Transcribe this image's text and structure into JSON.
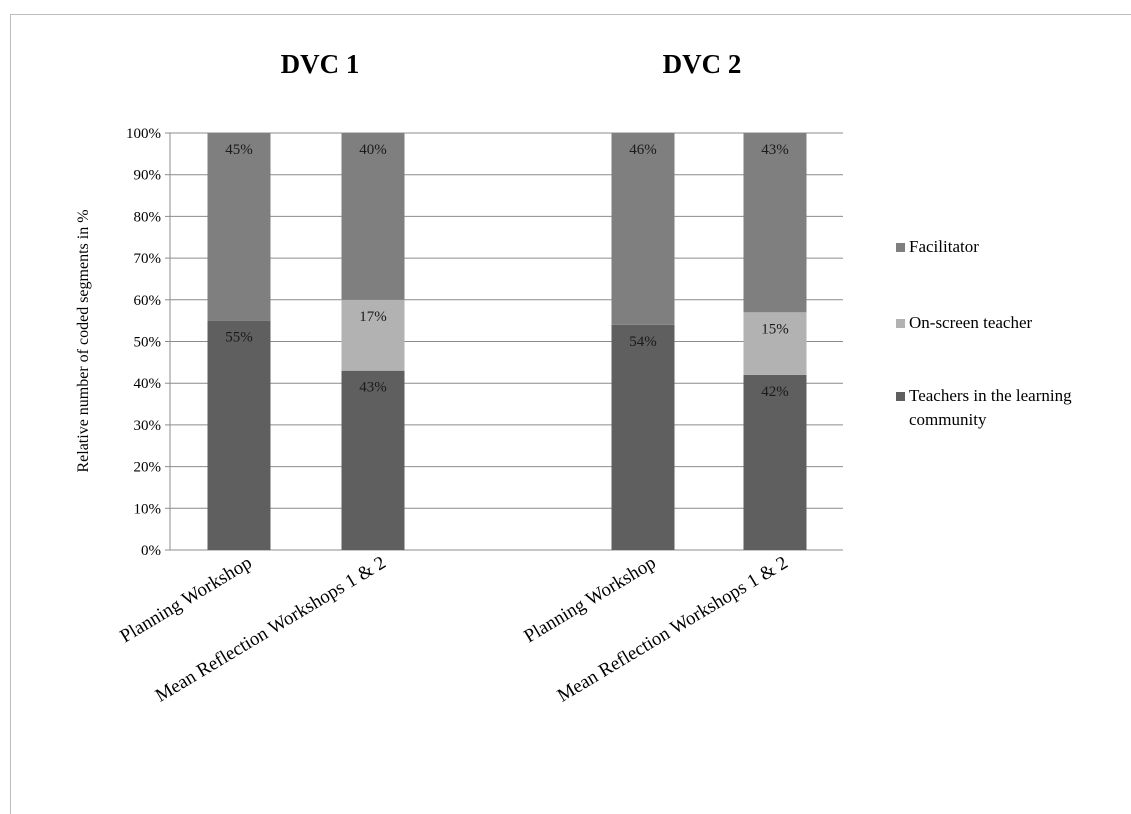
{
  "chart_data": {
    "type": "bar",
    "stacked": true,
    "ylabel": "Relative number of coded segments in %",
    "ylim": [
      0,
      100
    ],
    "yticks": [
      "0%",
      "10%",
      "20%",
      "30%",
      "40%",
      "50%",
      "60%",
      "70%",
      "80%",
      "90%",
      "100%"
    ],
    "grid": true,
    "legend_position": "right",
    "groups": [
      {
        "title": "DVC 1",
        "categories": [
          "Planning Workshop",
          "Mean Reflection Workshops 1 & 2"
        ],
        "series": [
          {
            "name": "Teachers in the learning community",
            "values": [
              55,
              43
            ],
            "labels": [
              "55%",
              "43%"
            ]
          },
          {
            "name": "On-screen teacher",
            "values": [
              0,
              17
            ],
            "labels": [
              "",
              "17%"
            ]
          },
          {
            "name": "Facilitator",
            "values": [
              45,
              40
            ],
            "labels": [
              "45%",
              "40%"
            ]
          }
        ]
      },
      {
        "title": "DVC 2",
        "categories": [
          "Planning Workshop",
          "Mean Reflection Workshops 1 & 2"
        ],
        "series": [
          {
            "name": "Teachers in the learning community",
            "values": [
              54,
              42
            ],
            "labels": [
              "54%",
              "42%"
            ]
          },
          {
            "name": "On-screen teacher",
            "values": [
              0,
              15
            ],
            "labels": [
              "",
              "15%"
            ]
          },
          {
            "name": "Facilitator",
            "values": [
              46,
              43
            ],
            "labels": [
              "46%",
              "43%"
            ]
          }
        ]
      }
    ],
    "legend": [
      {
        "name": "Facilitator",
        "color": "#7f7f7f"
      },
      {
        "name": "On-screen teacher",
        "color": "#b2b2b2"
      },
      {
        "name": "Teachers in the learning community",
        "color": "#5f5f5f"
      }
    ]
  },
  "colors": {
    "teachers": "#5f5f5f",
    "onscreen": "#b2b2b2",
    "facilitator": "#7f7f7f",
    "grid": "#8c8c8c"
  }
}
